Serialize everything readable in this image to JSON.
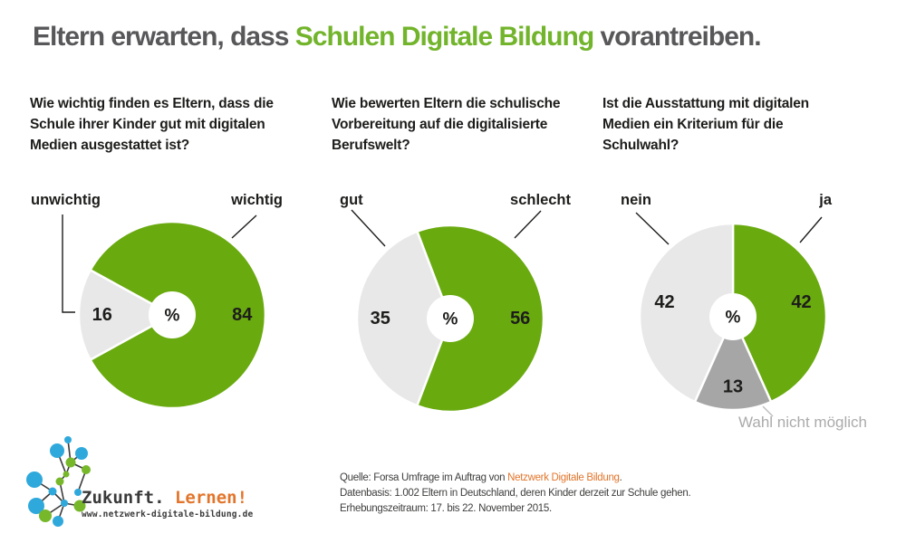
{
  "title": {
    "prefix": "Eltern erwarten, dass ",
    "highlight": "Schulen Digitale Bildung",
    "suffix": " vorantreiben."
  },
  "colors": {
    "pie_green": "#69AA0F",
    "title_green": "#72B42B",
    "title_gray": "#58585A",
    "slice_light_gray": "#E8E8E8",
    "slice_dark_gray": "#A6A6A6",
    "muted_label_gray": "#ABABAB",
    "accent_orange": "#E2752B",
    "logo_blue": "#2FA9DC",
    "logo_green": "#76B82A"
  },
  "chart_data": [
    {
      "type": "pie",
      "question_lines": [
        "Wie wichtig finden es Eltern, dass die",
        "Schule ihrer Kinder gut mit digitalen",
        "Medien ausgestattet ist?"
      ],
      "center_text": "%",
      "unit": "percent",
      "start_angle_deg": 241.2,
      "slices": [
        {
          "label": "unwichtig",
          "value": 16,
          "color": "#E8E8E8"
        },
        {
          "label": "wichtig",
          "value": 84,
          "color": "#69AA0F"
        }
      ]
    },
    {
      "type": "pie",
      "question_lines": [
        "Wie bewerten Eltern die schulische",
        "Vorbereitung auf die digitalisierte",
        "Berufswelt?"
      ],
      "center_text": "%",
      "unit": "percent",
      "start_angle_deg": 200.8,
      "slices": [
        {
          "label": "gut",
          "value": 35,
          "color": "#E8E8E8"
        },
        {
          "label": "schlecht",
          "value": 56,
          "color": "#69AA0F"
        }
      ]
    },
    {
      "type": "pie",
      "question_lines": [
        "Ist die Ausstattung mit digitalen",
        "Medien ein Kriterium für die",
        "Schulwahl?"
      ],
      "center_text": "%",
      "unit": "percent",
      "start_angle_deg": 0,
      "slices": [
        {
          "label": "ja",
          "value": 42,
          "color": "#69AA0F"
        },
        {
          "label": "Wahl nicht möglich",
          "value": 13,
          "color": "#A6A6A6"
        },
        {
          "label": "nein",
          "value": 42,
          "color": "#E8E8E8"
        }
      ]
    }
  ],
  "footer": {
    "source_prefix": "Quelle: Forsa Umfrage im Auftrag von ",
    "source_link": "Netzwerk Digitale Bildung",
    "source_dot": ".",
    "datenbasis": "Datenbasis: 1.002 Eltern in Deutschland, deren Kinder derzeit zur Schule gehen.",
    "zeitraum": "Erhebungszeitraum: 17. bis 22. November 2015."
  },
  "logo": {
    "text_dark": "Zukunft.",
    "text_orange": "Lernen!",
    "url": "www.netzwerk-digitale-bildung.de"
  }
}
